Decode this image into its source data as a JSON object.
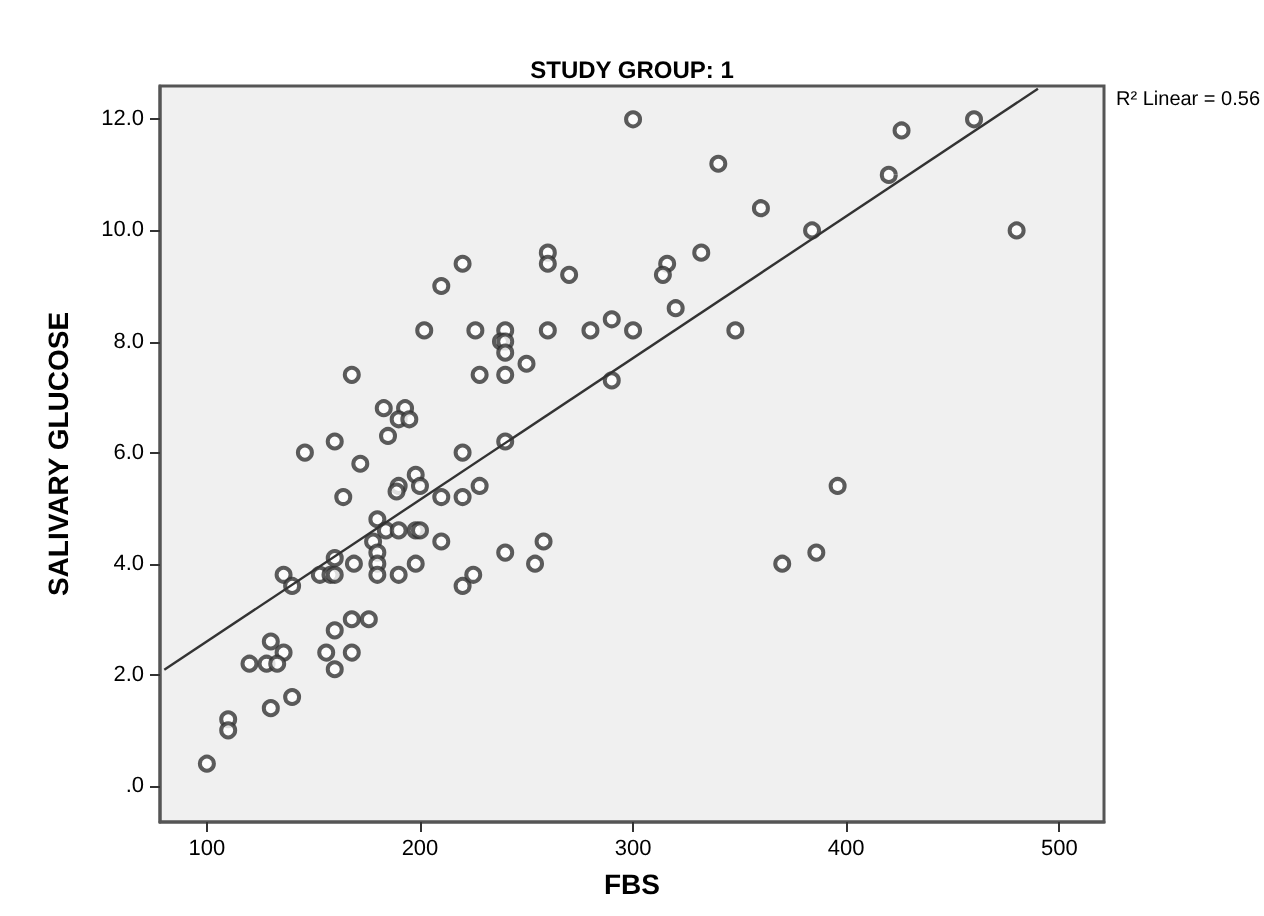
{
  "chart_data": {
    "type": "scatter",
    "title": "STUDY GROUP: 1",
    "xlabel": "FBS",
    "ylabel": "SALIVARY GLUCOSE",
    "annotations": [
      "R² Linear = 0.56"
    ],
    "xlim": [
      78,
      521
    ],
    "xticks": [
      100,
      200,
      300,
      400,
      500
    ],
    "ylim": [
      -0.65,
      12.6
    ],
    "yticks": [
      {
        "value": 0,
        "label": ".0"
      },
      {
        "value": 2,
        "label": "2.0"
      },
      {
        "value": 4,
        "label": "4.0"
      },
      {
        "value": 6,
        "label": "6.0"
      },
      {
        "value": 8,
        "label": "8.0"
      },
      {
        "value": 10,
        "label": "10.0"
      },
      {
        "value": 12,
        "label": "12.0"
      }
    ],
    "grid": false,
    "marker": "circle",
    "series": [
      {
        "color": "#333333",
        "x": [
          300,
          220,
          210,
          260,
          260,
          270,
          202,
          226,
          240,
          238,
          240,
          240,
          260,
          280,
          290,
          300,
          168,
          228,
          240,
          250,
          290,
          183,
          193,
          190,
          195,
          185,
          160,
          240,
          146,
          220,
          172,
          198,
          190,
          200,
          189,
          164,
          210,
          220,
          228,
          180,
          178,
          184,
          190,
          198,
          200,
          210,
          180,
          160,
          180,
          169,
          198,
          240,
          258,
          254,
          136,
          153,
          158,
          160,
          180,
          190,
          140,
          220,
          225,
          168,
          176,
          160,
          130,
          136,
          120,
          128,
          133,
          156,
          168,
          160,
          140,
          130,
          110,
          110,
          100,
          340,
          360,
          332,
          316,
          314,
          320,
          348,
          384,
          420,
          426,
          460,
          480,
          396,
          386,
          370
        ],
        "values": [
          12.0,
          9.4,
          9.0,
          9.6,
          9.4,
          9.2,
          8.2,
          8.2,
          8.2,
          8.0,
          8.0,
          7.8,
          8.2,
          8.2,
          8.4,
          8.2,
          7.4,
          7.4,
          7.4,
          7.6,
          7.3,
          6.8,
          6.8,
          6.6,
          6.6,
          6.3,
          6.2,
          6.2,
          6.0,
          6.0,
          5.8,
          5.6,
          5.4,
          5.4,
          5.3,
          5.2,
          5.2,
          5.2,
          5.4,
          4.8,
          4.4,
          4.6,
          4.6,
          4.6,
          4.6,
          4.4,
          4.2,
          4.1,
          4.0,
          4.0,
          4.0,
          4.2,
          4.4,
          4.0,
          3.8,
          3.8,
          3.8,
          3.8,
          3.8,
          3.8,
          3.6,
          3.6,
          3.8,
          3.0,
          3.0,
          2.8,
          2.6,
          2.4,
          2.2,
          2.2,
          2.2,
          2.4,
          2.4,
          2.1,
          1.6,
          1.4,
          1.2,
          1.0,
          0.4,
          11.2,
          10.4,
          9.6,
          9.4,
          9.2,
          8.6,
          8.2,
          10.0,
          11.0,
          11.8,
          12.0,
          10.0,
          5.4,
          4.2,
          4.0
        ]
      },
      {
        "type": "line",
        "color": "#333333",
        "marker": "none",
        "line_style": "solid",
        "x": [
          80,
          490
        ],
        "values": [
          2.09,
          12.55
        ]
      }
    ]
  }
}
